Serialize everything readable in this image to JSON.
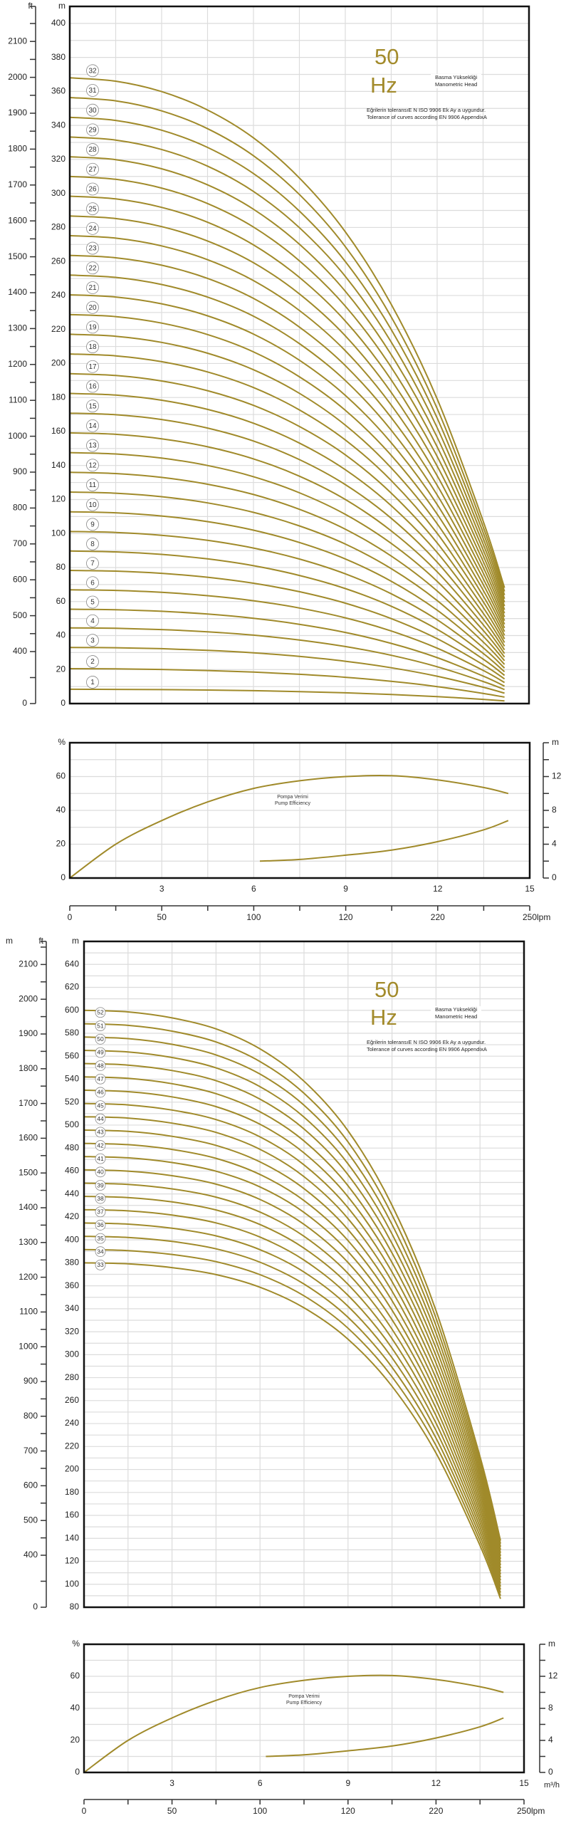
{
  "chart_data": [
    {
      "type": "line",
      "title": "Manometric Head",
      "frequency_value": "50",
      "frequency_unit": "Hz",
      "head_label_tr": "Basma Yüksekliği",
      "head_label_en": "Manometric Head",
      "tolerance_tr": "Eğrilerin toleransıE N ISO 9906 Ek Ay a uygundur.",
      "tolerance_en": "Tolerance of curves according EN 9906 AppendixA",
      "ylabel": "m",
      "ylabel_ft": "ft",
      "ylim": [
        0,
        410
      ],
      "xlim": [
        0,
        15
      ],
      "yticks": [
        0,
        20,
        40,
        60,
        80,
        100,
        120,
        140,
        160,
        180,
        200,
        220,
        240,
        260,
        280,
        300,
        320,
        340,
        360,
        380,
        400
      ],
      "ft_ticks": [
        "0",
        "400",
        "500",
        "600",
        "700",
        "800",
        "900",
        "1000",
        "1100",
        "1200",
        "1300",
        "1400",
        "1500",
        "1600",
        "1700",
        "1800",
        "1900",
        "2000",
        "2100"
      ],
      "grid": true,
      "x": [
        0,
        1.5,
        3,
        4.5,
        6,
        7.5,
        9,
        10.5,
        12,
        13.5,
        14.2
      ],
      "relative_head": [
        1,
        0.9946,
        0.978,
        0.9486,
        0.904,
        0.84,
        0.754,
        0.638,
        0.487,
        0.292,
        0.185
      ],
      "series": [
        {
          "name": "1",
          "shutoff_head": 8.4
        },
        {
          "name": "2",
          "shutoff_head": 20.5
        },
        {
          "name": "3",
          "shutoff_head": 33
        },
        {
          "name": "4",
          "shutoff_head": 44.5
        },
        {
          "name": "5",
          "shutoff_head": 55.5
        },
        {
          "name": "6",
          "shutoff_head": 66.9
        },
        {
          "name": "7",
          "shutoff_head": 78.3
        },
        {
          "name": "8",
          "shutoff_head": 89.7
        },
        {
          "name": "9",
          "shutoff_head": 101.2
        },
        {
          "name": "10",
          "shutoff_head": 112.8
        },
        {
          "name": "11",
          "shutoff_head": 124.4
        },
        {
          "name": "12",
          "shutoff_head": 136
        },
        {
          "name": "13",
          "shutoff_head": 147.6
        },
        {
          "name": "14",
          "shutoff_head": 159.2
        },
        {
          "name": "15",
          "shutoff_head": 170.8
        },
        {
          "name": "16",
          "shutoff_head": 182.4
        },
        {
          "name": "17",
          "shutoff_head": 194
        },
        {
          "name": "18",
          "shutoff_head": 205.6
        },
        {
          "name": "19",
          "shutoff_head": 217.2
        },
        {
          "name": "20",
          "shutoff_head": 228.8
        },
        {
          "name": "21",
          "shutoff_head": 240.4
        },
        {
          "name": "22",
          "shutoff_head": 252
        },
        {
          "name": "23",
          "shutoff_head": 263.6
        },
        {
          "name": "24",
          "shutoff_head": 275.2
        },
        {
          "name": "25",
          "shutoff_head": 286.8
        },
        {
          "name": "26",
          "shutoff_head": 298.4
        },
        {
          "name": "27",
          "shutoff_head": 310
        },
        {
          "name": "28",
          "shutoff_head": 321.6
        },
        {
          "name": "29",
          "shutoff_head": 333.2
        },
        {
          "name": "30",
          "shutoff_head": 344.8
        },
        {
          "name": "31",
          "shutoff_head": 356.4
        },
        {
          "name": "32",
          "shutoff_head": 368
        }
      ]
    },
    {
      "type": "line",
      "title": "Pump Efficiency",
      "label_tr": "Pompa Verimi",
      "label_en": "Pump Efficiency",
      "ylabel": "%",
      "ylabel_right": "m",
      "ylim": [
        0,
        80
      ],
      "yticks": [
        0,
        20,
        40,
        60
      ],
      "yticks_right": [
        0,
        4,
        8,
        12
      ],
      "xlim": [
        0,
        15
      ],
      "xticks": [
        3,
        6,
        9,
        12,
        15
      ],
      "lpm_ticks": [
        "0",
        "50",
        "100",
        "120",
        "220",
        "250"
      ],
      "lpm_label": "lpm",
      "grid": true,
      "series": [
        {
          "name": "efficiency_percent",
          "x": [
            0,
            1.5,
            3,
            4.5,
            6,
            7.5,
            9,
            10.5,
            12,
            13.5,
            14.3
          ],
          "y": [
            0,
            20,
            34,
            45,
            53,
            57.5,
            60,
            60.5,
            58,
            53.5,
            50
          ]
        },
        {
          "name": "npsh_m",
          "x": [
            6.2,
            7.5,
            9,
            10.5,
            12,
            13.5,
            14.3
          ],
          "y": [
            2,
            2.2,
            2.7,
            3.3,
            4.3,
            5.7,
            6.8
          ]
        }
      ]
    },
    {
      "type": "line",
      "title": "Manometric Head",
      "frequency_value": "50",
      "frequency_unit": "Hz",
      "head_label_tr": "Basma Yüksekliği",
      "head_label_en": "Manometric Head",
      "tolerance_tr": "Eğrilerin toleransıE N ISO 9906 Ek Ay a uygundur.",
      "tolerance_en": "Tolerance of curves according EN 9906 AppendixA",
      "ylabel": "m",
      "ylabel_ft": "ft",
      "ylabel_left": "m",
      "ylim": [
        80,
        660
      ],
      "xlim": [
        0,
        15
      ],
      "yticks": [
        80,
        100,
        120,
        140,
        160,
        180,
        200,
        220,
        240,
        260,
        280,
        300,
        320,
        340,
        360,
        380,
        400,
        420,
        440,
        460,
        480,
        500,
        520,
        540,
        560,
        580,
        600,
        620,
        640
      ],
      "ft_ticks": [
        "0",
        "400",
        "500",
        "600",
        "700",
        "800",
        "900",
        "1000",
        "1100",
        "1200",
        "1300",
        "1400",
        "1500",
        "1600",
        "1700",
        "1800",
        "1900",
        "2000",
        "2100"
      ],
      "grid": true,
      "x": [
        0,
        1.5,
        3,
        4.5,
        6,
        7.5,
        9,
        10.5,
        12,
        13.5,
        14.2
      ],
      "relative_head": [
        1,
        0.9976,
        0.989,
        0.973,
        0.944,
        0.897,
        0.825,
        0.717,
        0.564,
        0.352,
        0.23
      ],
      "series": [
        {
          "name": "33",
          "shutoff_head": 380
        },
        {
          "name": "34",
          "shutoff_head": 391.6
        },
        {
          "name": "35",
          "shutoff_head": 403.1
        },
        {
          "name": "36",
          "shutoff_head": 414.7
        },
        {
          "name": "37",
          "shutoff_head": 426.3
        },
        {
          "name": "38",
          "shutoff_head": 437.9
        },
        {
          "name": "39",
          "shutoff_head": 449.4
        },
        {
          "name": "40",
          "shutoff_head": 461
        },
        {
          "name": "41",
          "shutoff_head": 472.6
        },
        {
          "name": "42",
          "shutoff_head": 484.1
        },
        {
          "name": "43",
          "shutoff_head": 495.7
        },
        {
          "name": "44",
          "shutoff_head": 507.3
        },
        {
          "name": "45",
          "shutoff_head": 518.8
        },
        {
          "name": "46",
          "shutoff_head": 530.4
        },
        {
          "name": "47",
          "shutoff_head": 542
        },
        {
          "name": "48",
          "shutoff_head": 553.6
        },
        {
          "name": "49",
          "shutoff_head": 565.1
        },
        {
          "name": "50",
          "shutoff_head": 576.7
        },
        {
          "name": "51",
          "shutoff_head": 588.3
        },
        {
          "name": "52",
          "shutoff_head": 600
        }
      ]
    },
    {
      "type": "line",
      "title": "Pump Efficiency",
      "label_tr": "Pompa Verimi",
      "label_en": "Pump Efficiency",
      "ylabel": "%",
      "ylabel_right": "m",
      "ylim": [
        0,
        80
      ],
      "yticks": [
        0,
        20,
        40,
        60
      ],
      "yticks_right": [
        0,
        4,
        8,
        12
      ],
      "xlim": [
        0,
        15
      ],
      "xticks": [
        3,
        6,
        9,
        12,
        15
      ],
      "xunit": "m³/h",
      "lpm_ticks": [
        "0",
        "50",
        "100",
        "120",
        "220",
        "250"
      ],
      "lpm_label": "lpm",
      "grid": true,
      "series": [
        {
          "name": "efficiency_percent",
          "x": [
            0,
            1.5,
            3,
            4.5,
            6,
            7.5,
            9,
            10.5,
            12,
            13.5,
            14.3
          ],
          "y": [
            0,
            20,
            34,
            45,
            53,
            57.5,
            60,
            60.5,
            58,
            53.5,
            50
          ]
        },
        {
          "name": "npsh_m",
          "x": [
            6.2,
            7.5,
            9,
            10.5,
            12,
            13.5,
            14.3
          ],
          "y": [
            2,
            2.2,
            2.7,
            3.3,
            4.3,
            5.7,
            6.8
          ]
        }
      ]
    }
  ],
  "colors": {
    "curve": "#a08a2a",
    "hz": "#a38b2c",
    "grid": "#dcdcdc",
    "frame": "#111111",
    "axis": "#333333"
  }
}
